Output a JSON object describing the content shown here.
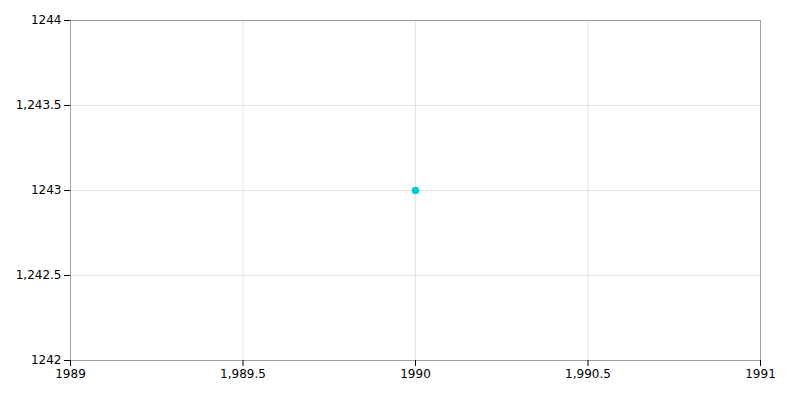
{
  "chart_data": {
    "type": "scatter",
    "x": [
      1990
    ],
    "values": [
      1243
    ],
    "color": "#00CED1",
    "xlim": [
      1989,
      1991
    ],
    "xticks": [
      1989,
      {
        "value": 1989.5,
        "label": "1,989.5"
      },
      1990,
      {
        "value": 1990.5,
        "label": "1,990.5"
      },
      1991
    ],
    "ylim": [
      1242,
      1244
    ],
    "yticks": [
      1242,
      {
        "value": 1242.5,
        "label": "1,242.5"
      },
      1243,
      {
        "value": 1243.5,
        "label": "1,243.5"
      },
      1244
    ],
    "grid": true
  }
}
